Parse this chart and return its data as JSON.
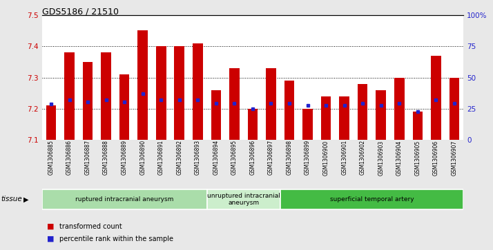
{
  "title": "GDS5186 / 21510",
  "samples": [
    "GSM1306885",
    "GSM1306886",
    "GSM1306887",
    "GSM1306888",
    "GSM1306889",
    "GSM1306890",
    "GSM1306891",
    "GSM1306892",
    "GSM1306893",
    "GSM1306894",
    "GSM1306895",
    "GSM1306896",
    "GSM1306897",
    "GSM1306898",
    "GSM1306899",
    "GSM1306900",
    "GSM1306901",
    "GSM1306902",
    "GSM1306903",
    "GSM1306904",
    "GSM1306905",
    "GSM1306906",
    "GSM1306907"
  ],
  "bar_tops": [
    7.21,
    7.38,
    7.35,
    7.38,
    7.31,
    7.45,
    7.4,
    7.4,
    7.41,
    7.26,
    7.33,
    7.2,
    7.33,
    7.29,
    7.2,
    7.24,
    7.24,
    7.28,
    7.26,
    7.3,
    7.19,
    7.37,
    7.3
  ],
  "bar_bottom": 7.1,
  "percentile_values": [
    7.215,
    7.228,
    7.222,
    7.228,
    7.222,
    7.248,
    7.228,
    7.228,
    7.228,
    7.218,
    7.218,
    7.2,
    7.218,
    7.218,
    7.21,
    7.21,
    7.21,
    7.218,
    7.21,
    7.218,
    7.192,
    7.228,
    7.218
  ],
  "ylim": [
    7.1,
    7.5
  ],
  "yticks": [
    7.1,
    7.2,
    7.3,
    7.4,
    7.5
  ],
  "right_yticks": [
    0,
    25,
    50,
    75,
    100
  ],
  "bar_color": "#cc0000",
  "dot_color": "#2222cc",
  "fig_bg": "#e8e8e8",
  "plot_bg": "#ffffff",
  "groups": [
    {
      "label": "ruptured intracranial aneurysm",
      "start": 0,
      "end": 8,
      "color": "#aaddaa"
    },
    {
      "label": "unruptured intracranial\naneurysm",
      "start": 9,
      "end": 12,
      "color": "#cceecc"
    },
    {
      "label": "superficial temporal artery",
      "start": 13,
      "end": 22,
      "color": "#44bb44"
    }
  ],
  "tissue_label": "tissue",
  "legend_bar_label": "transformed count",
  "legend_dot_label": "percentile rank within the sample",
  "left_axis_color": "#cc0000",
  "right_axis_color": "#2222cc",
  "bar_width": 0.55,
  "grid_color": "black",
  "grid_style": "dotted"
}
